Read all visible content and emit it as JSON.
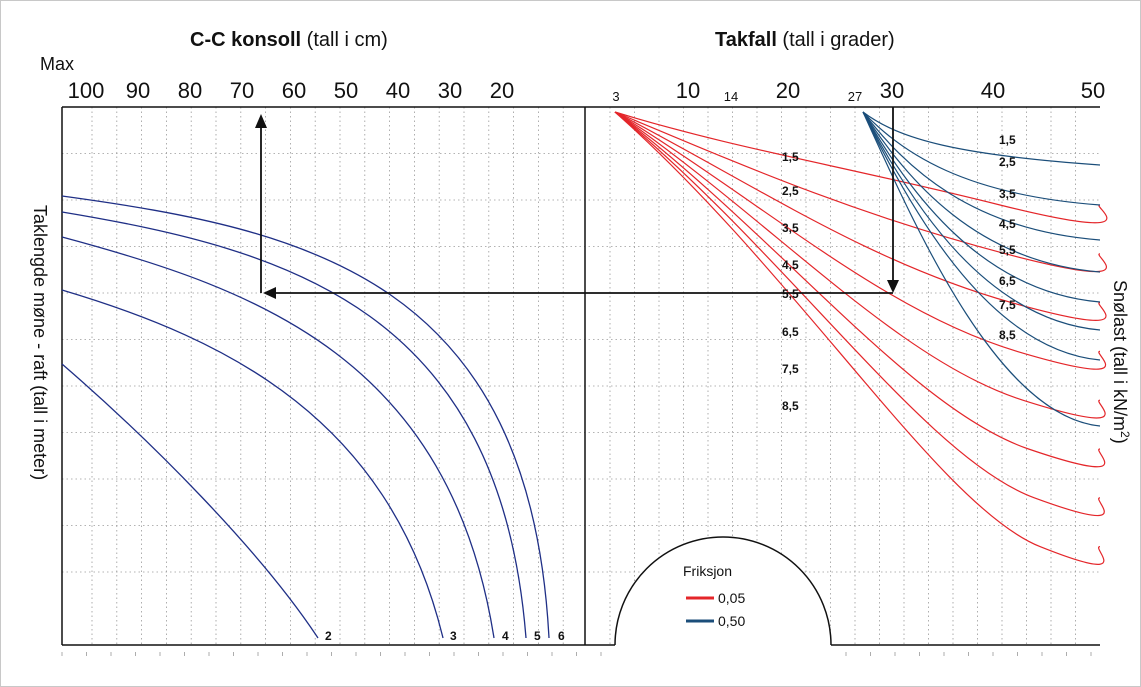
{
  "chart_data": {
    "type": "line",
    "left_panel": {
      "title_bold": "C-C konsoll",
      "title_rest": " (tall i cm)",
      "max_label": "Max",
      "x_ticks": [
        "100",
        "90",
        "80",
        "70",
        "60",
        "50",
        "40",
        "30",
        "20"
      ],
      "ylabel": "Taklengde møne - raft (tall i meter)",
      "series_labels": [
        "2",
        "3",
        "4",
        "5",
        "6"
      ]
    },
    "right_panel": {
      "title_bold": "Takfall",
      "title_rest": " (tall i grader)",
      "x_ticks_big": [
        "10",
        "20",
        "30",
        "40",
        "50"
      ],
      "x_ticks_small": [
        "3",
        "14",
        "27"
      ],
      "ylabel_main": "Snølast (tall i kN/m",
      "ylabel_sup": "2",
      "ylabel_end": ")",
      "red_labels": [
        "1,5",
        "2,5",
        "3,5",
        "4,5",
        "5,5",
        "6,5",
        "7,5",
        "8,5"
      ],
      "blue_labels": [
        "1,5",
        "2,5",
        "3,5",
        "4,5",
        "5,5",
        "6,5",
        "7,5",
        "8,5"
      ]
    },
    "legend": {
      "title": "Friksjon",
      "items": [
        {
          "label": "0,05",
          "color": "#e4262a"
        },
        {
          "label": "0,50",
          "color": "#1b4e7a"
        }
      ]
    },
    "colors": {
      "left_curves": "#1f2f86",
      "red": "#e4262a",
      "blue": "#1b4e7a"
    }
  }
}
